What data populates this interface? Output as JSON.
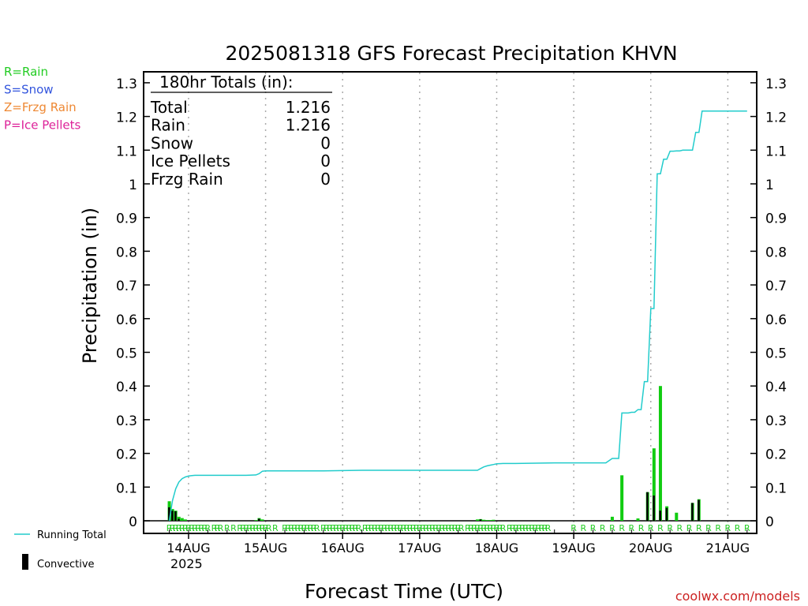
{
  "title": "2025081318 GFS Forecast Precipitation KHVN",
  "legend_left": [
    {
      "text": "R=Rain",
      "color": "#22cc22"
    },
    {
      "text": "S=Snow",
      "color": "#3355dd"
    },
    {
      "text": "Z=Frzg Rain",
      "color": "#ee8833"
    },
    {
      "text": "P=Ice Pellets",
      "color": "#dd2299"
    }
  ],
  "totals": {
    "heading": "180hr Totals (in):",
    "rows": [
      {
        "label": "Total",
        "value": "1.216"
      },
      {
        "label": "Rain",
        "value": "1.216"
      },
      {
        "label": "Snow",
        "value": "0"
      },
      {
        "label": "Ice Pellets",
        "value": "0"
      },
      {
        "label": "Frzg Rain",
        "value": "0"
      }
    ]
  },
  "legend_bottom": {
    "running_total": "Running Total",
    "convective": "Convective"
  },
  "watermark": "coolwx.com/models",
  "colors": {
    "running_total": "#22cccc",
    "precip_bar": "#11cc11",
    "convective_bar": "#000000",
    "rain_marker": "#22cc22"
  },
  "chart_data": {
    "type": "bar",
    "ylabel": "Precipitation (in)",
    "xlabel": "Forecast Time (UTC)",
    "ylim": [
      0,
      1.35
    ],
    "yticks": [
      0,
      0.1,
      0.2,
      0.3,
      0.4,
      0.5,
      0.6,
      0.7,
      0.8,
      0.9,
      1,
      1.1,
      1.2,
      1.3
    ],
    "ytick_labels": [
      "0",
      "0.1",
      "0.2",
      "0.3",
      "0.4",
      "0.5",
      "0.6",
      "0.7",
      "0.8",
      "0.9",
      "1",
      "1.1",
      "1.2",
      "1.3"
    ],
    "x_unit": "forecast hour",
    "xlim": [
      -8,
      183
    ],
    "xticks": [
      {
        "hour": 6,
        "label": "14AUG",
        "sublabel": "2025"
      },
      {
        "hour": 30,
        "label": "15AUG"
      },
      {
        "hour": 54,
        "label": "16AUG"
      },
      {
        "hour": 78,
        "label": "17AUG"
      },
      {
        "hour": 102,
        "label": "18AUG"
      },
      {
        "hour": 126,
        "label": "19AUG"
      },
      {
        "hour": 150,
        "label": "20AUG"
      },
      {
        "hour": 174,
        "label": "21AUG"
      }
    ],
    "grid": "vertical dotted at each day",
    "series": [
      {
        "name": "Running Total",
        "type": "line",
        "x": [
          0,
          1,
          2,
          3,
          4,
          5,
          6,
          7,
          8,
          10,
          12,
          16,
          20,
          24,
          27,
          28,
          29,
          30,
          36,
          48,
          54,
          60,
          72,
          84,
          96,
          97,
          98,
          99,
          100,
          101,
          102,
          104,
          108,
          114,
          120,
          126,
          132,
          135,
          136,
          138,
          139,
          140,
          141,
          142,
          143,
          144,
          145,
          146,
          147,
          148,
          149,
          150,
          151,
          152,
          153,
          154,
          155,
          156,
          157,
          158,
          159,
          160,
          161,
          162,
          163,
          164,
          165,
          166,
          167,
          168,
          169,
          170,
          171,
          172,
          173,
          174,
          175,
          176,
          177,
          178,
          179,
          180
        ],
        "y": [
          0,
          0.06,
          0.095,
          0.115,
          0.125,
          0.13,
          0.133,
          0.134,
          0.135,
          0.135,
          0.135,
          0.135,
          0.135,
          0.135,
          0.136,
          0.14,
          0.147,
          0.148,
          0.148,
          0.148,
          0.149,
          0.15,
          0.15,
          0.15,
          0.15,
          0.155,
          0.16,
          0.163,
          0.165,
          0.167,
          0.169,
          0.17,
          0.17,
          0.171,
          0.172,
          0.172,
          0.172,
          0.172,
          0.172,
          0.185,
          0.185,
          0.185,
          0.32,
          0.32,
          0.32,
          0.322,
          0.322,
          0.33,
          0.33,
          0.413,
          0.413,
          0.63,
          0.63,
          1.03,
          1.03,
          1.073,
          1.073,
          1.097,
          1.097,
          1.098,
          1.098,
          1.1,
          1.1,
          1.1,
          1.1,
          1.153,
          1.153,
          1.216,
          1.216,
          1.216,
          1.216,
          1.216,
          1.216,
          1.216,
          1.216,
          1.216,
          1.216,
          1.216,
          1.216,
          1.216,
          1.216,
          1.216
        ]
      },
      {
        "name": "Precipitation",
        "type": "bar",
        "x": [
          0,
          1,
          2,
          3,
          4,
          5,
          27,
          28,
          29,
          96,
          97,
          98,
          99,
          100,
          101,
          138,
          141,
          146,
          149,
          151,
          153,
          155,
          158,
          163,
          165
        ],
        "y": [
          0.058,
          0.035,
          0.03,
          0.012,
          0.008,
          0.004,
          0.002,
          0.008,
          0.004,
          0.004,
          0.005,
          0.003,
          0.002,
          0.002,
          0.003,
          0.012,
          0.135,
          0.007,
          0.085,
          0.215,
          0.4,
          0.043,
          0.024,
          0.053,
          0.064
        ]
      },
      {
        "name": "Convective",
        "type": "bar",
        "x": [
          0,
          1,
          2,
          3,
          28,
          97,
          149,
          151,
          153,
          155,
          163,
          165
        ],
        "y": [
          0.04,
          0.03,
          0.028,
          0.006,
          0.006,
          0.004,
          0.085,
          0.075,
          0.03,
          0.038,
          0.053,
          0.062
        ]
      }
    ],
    "precip_type_markers": {
      "label": "R",
      "hours": [
        0,
        1,
        2,
        3,
        4,
        5,
        6,
        7,
        8,
        9,
        10,
        11,
        12,
        14,
        15,
        16,
        18,
        20,
        22,
        23,
        24,
        25,
        26,
        27,
        28,
        29,
        30,
        31,
        33,
        36,
        37,
        38,
        39,
        40,
        41,
        42,
        43,
        44,
        45,
        46,
        48,
        49,
        50,
        51,
        52,
        53,
        54,
        55,
        56,
        57,
        58,
        59,
        61,
        62,
        63,
        64,
        65,
        66,
        67,
        68,
        69,
        70,
        71,
        72,
        73,
        74,
        75,
        76,
        77,
        78,
        79,
        80,
        81,
        82,
        83,
        84,
        85,
        86,
        87,
        88,
        89,
        90,
        91,
        93,
        94,
        95,
        96,
        97,
        98,
        99,
        100,
        101,
        102,
        103,
        104,
        106,
        107,
        108,
        109,
        110,
        111,
        112,
        113,
        114,
        115,
        116,
        117,
        118,
        126,
        129,
        132,
        135,
        138,
        141,
        144,
        147,
        150,
        153,
        156,
        159,
        162,
        165,
        168,
        171,
        174,
        177,
        180
      ]
    }
  }
}
